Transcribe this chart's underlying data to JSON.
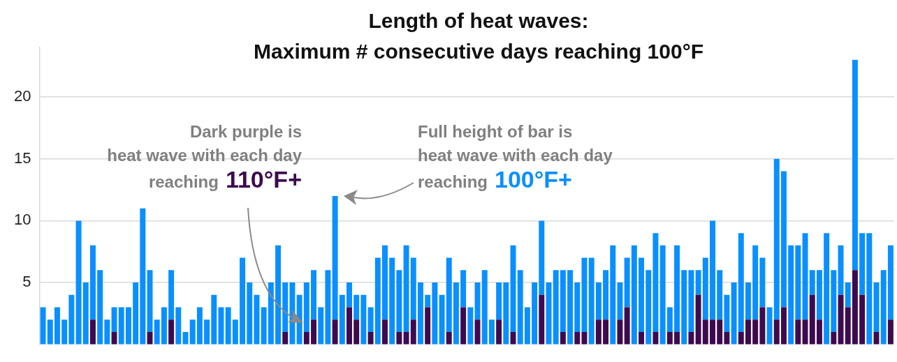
{
  "chart_data": {
    "type": "bar",
    "title": "Length of heat waves:\nMaximum # consecutive days reaching 100°F",
    "categories": [
      null,
      null,
      null,
      null,
      null,
      null,
      null,
      null,
      null,
      null,
      null,
      null,
      null,
      null,
      null,
      null,
      null,
      null,
      null,
      null,
      null,
      null,
      null,
      null,
      null,
      null,
      null,
      null,
      null,
      null,
      null,
      null,
      null,
      null,
      null,
      null,
      null,
      null,
      null,
      null,
      null,
      null,
      null,
      null,
      null,
      null,
      null,
      null,
      null,
      null,
      null,
      null,
      null,
      null,
      null,
      null,
      null,
      null,
      null,
      null,
      null,
      null,
      null,
      null,
      null,
      null,
      null,
      null,
      null,
      null,
      null,
      null,
      null,
      null,
      null,
      null,
      null,
      null,
      null,
      null,
      null,
      null,
      null,
      null,
      null,
      null,
      null,
      null,
      null,
      null,
      null,
      null,
      null,
      null,
      null,
      null,
      null,
      null,
      null,
      null,
      null,
      null,
      null,
      null,
      null,
      null,
      null,
      null,
      null,
      null,
      null,
      null,
      null,
      null,
      null,
      null,
      null,
      null,
      null,
      null
    ],
    "stacked": true,
    "series": [
      {
        "color": "#3d0a4f",
        "values": [
          0,
          0,
          0,
          0,
          0,
          0,
          0,
          2,
          0,
          0,
          1,
          0,
          0,
          0,
          0,
          1,
          0,
          0,
          2,
          0,
          0,
          0,
          0,
          0,
          0,
          0,
          0,
          0,
          0,
          0,
          0,
          0,
          0,
          0,
          1,
          0,
          0,
          1,
          2,
          0,
          0,
          2,
          0,
          3,
          2,
          0,
          1,
          0,
          2,
          0,
          1,
          1,
          2,
          0,
          3,
          0,
          0,
          1,
          0,
          3,
          0,
          2,
          0,
          0,
          2,
          0,
          1,
          0,
          0,
          0,
          4,
          0,
          0,
          1,
          0,
          1,
          1,
          0,
          2,
          2,
          0,
          2,
          3,
          0,
          1,
          0,
          1,
          0,
          1,
          1,
          0,
          1,
          4,
          2,
          2,
          2,
          1,
          0,
          1,
          2,
          2,
          3,
          0,
          2,
          3,
          0,
          2,
          2,
          4,
          2,
          0,
          1,
          4,
          3,
          6,
          4,
          0,
          1,
          0,
          2
        ]
      },
      {
        "color": "#0a8fff",
        "values": [
          3,
          2,
          3,
          2,
          4,
          10,
          5,
          6,
          6,
          2,
          2,
          3,
          3,
          5,
          11,
          5,
          2,
          3,
          4,
          3,
          1,
          2,
          3,
          2,
          4,
          3,
          3,
          2,
          7,
          5,
          4,
          3,
          5,
          8,
          4,
          5,
          4,
          4,
          4,
          3,
          6,
          10,
          4,
          2,
          2,
          4,
          2,
          7,
          6,
          7,
          5,
          7,
          5,
          5,
          1,
          5,
          4,
          6,
          5,
          3,
          3,
          3,
          6,
          2,
          3,
          5,
          7,
          6,
          3,
          5,
          6,
          5,
          6,
          5,
          6,
          4,
          6,
          7,
          3,
          4,
          8,
          3,
          4,
          8,
          6,
          6,
          8,
          8,
          2,
          7,
          6,
          5,
          2,
          5,
          8,
          4,
          3,
          5,
          8,
          3,
          6,
          4,
          3,
          13,
          11,
          8,
          6,
          7,
          2,
          4,
          9,
          5,
          4,
          2,
          17,
          5,
          9,
          4,
          6,
          6
        ]
      }
    ],
    "ylim": [
      0,
      24
    ],
    "yticks": [
      5,
      10,
      15,
      20
    ],
    "grid": "y",
    "legend": false,
    "annotations": [
      "Dark purple is\nheat wave with each day\nreaching",
      "110°F+",
      "Full height of bar is\nheat wave with each day\nreaching",
      "100°F+"
    ]
  }
}
